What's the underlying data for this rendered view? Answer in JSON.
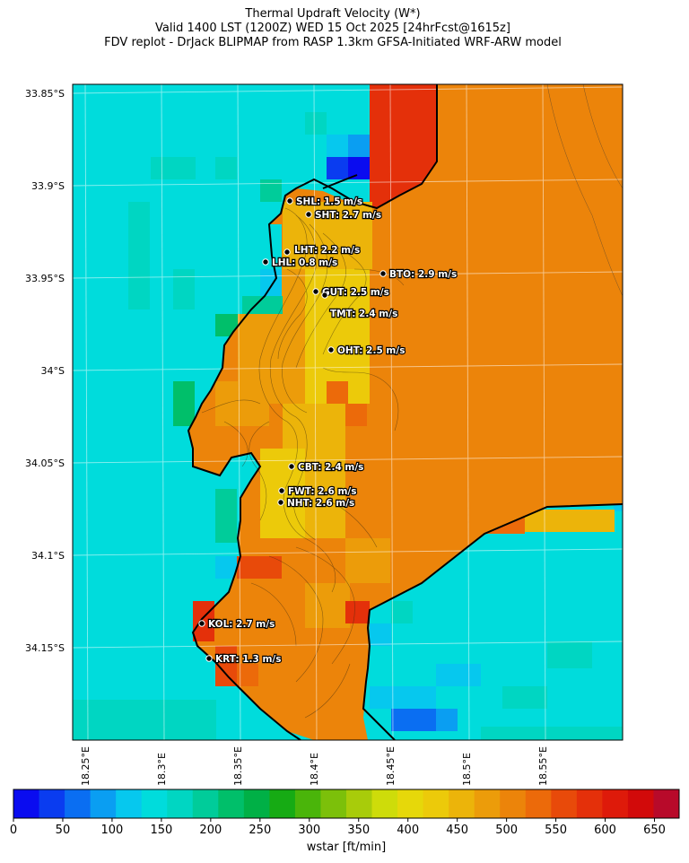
{
  "title": {
    "line1": "Thermal Updraft Velocity (W*)",
    "line2": "Valid 1400 LST (1200Z) WED 15 Oct 2025 [24hrFcst@1615z]",
    "line3": "FDV replot - DrJack BLIPMAP from RASP 1.3km GFSA-Initiated WRF-ARW model"
  },
  "axes": {
    "lat_labels": [
      "33.85°S",
      "33.9°S",
      "33.95°S",
      "34°S",
      "34.05°S",
      "34.1°S",
      "34.15°S"
    ],
    "lon_labels": [
      "18.25°E",
      "18.3°E",
      "18.35°E",
      "18.4°E",
      "18.45°E",
      "18.5°E",
      "18.55°E"
    ]
  },
  "stations": [
    {
      "code": "SHL",
      "text": "SHL: 1.5 m/s"
    },
    {
      "code": "SHT",
      "text": "SHT: 2.7 m/s"
    },
    {
      "code": "LHT",
      "text": "LHT: 2.2 m/s"
    },
    {
      "code": "LHL",
      "text": "LHL: 0.8 m/s"
    },
    {
      "code": "BTO",
      "text": "BTO: 2.9 m/s"
    },
    {
      "code": "GUT",
      "text": "GUT: 2.5 m/s"
    },
    {
      "code": "TMT",
      "text": "TMT: 2.4 m/s"
    },
    {
      "code": "OHT",
      "text": "OHT: 2.5 m/s"
    },
    {
      "code": "CBT",
      "text": "CBT: 2.4 m/s"
    },
    {
      "code": "FWT",
      "text": "FWT: 2.6 m/s"
    },
    {
      "code": "NHT",
      "text": "NHT: 2.6 m/s"
    },
    {
      "code": "KOL",
      "text": "KOL: 2.7 m/s"
    },
    {
      "code": "KRT",
      "text": "KRT: 1.3 m/s"
    }
  ],
  "colorbar": {
    "title": "wstar [ft/min]",
    "ticks": [
      "0",
      "50",
      "100",
      "150",
      "200",
      "250",
      "300",
      "350",
      "400",
      "450",
      "500",
      "550",
      "600",
      "650"
    ],
    "colors": [
      "#0a0cf0",
      "#0a3cf0",
      "#0a6ef2",
      "#0a9ef2",
      "#06c8ee",
      "#00dcdc",
      "#00d6c2",
      "#00cc9a",
      "#00bf6a",
      "#00b046",
      "#16ab14",
      "#4ab50a",
      "#7cc00a",
      "#a8cc0a",
      "#cedc0a",
      "#e6d80a",
      "#ecca0a",
      "#ecb40a",
      "#ec9c0a",
      "#ec840a",
      "#ec6a0a",
      "#e84a0a",
      "#e4300a",
      "#de1a0a",
      "#d20a0a",
      "#b80a2a"
    ]
  },
  "colors": {
    "sea": "#00dcdc",
    "coast": "#000000"
  }
}
